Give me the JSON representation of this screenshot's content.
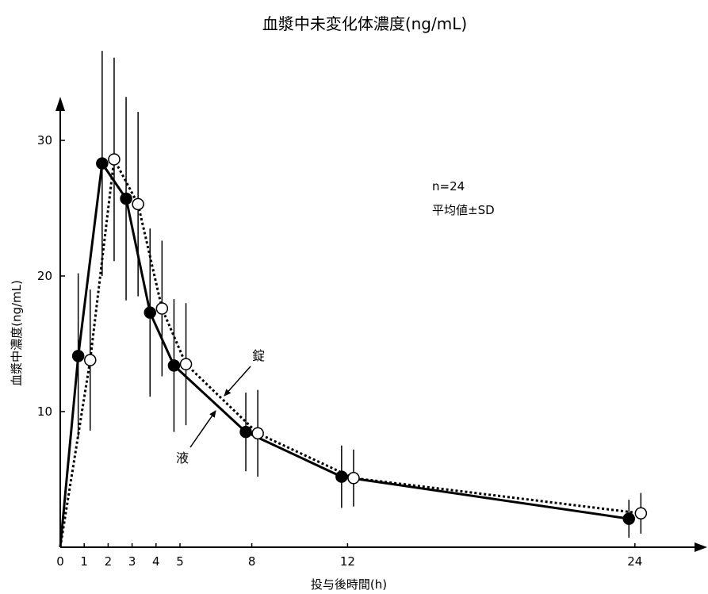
{
  "chart_data": {
    "type": "line",
    "title": "血漿中未変化体濃度(ng/mL)",
    "xlabel": "投与後時間(h)",
    "ylabel": "血漿中濃度(ng/mL)",
    "xlim": [
      0,
      27
    ],
    "ylim": [
      0,
      35
    ],
    "x_ticks": [
      0,
      1,
      2,
      3,
      4,
      5,
      8,
      12,
      24
    ],
    "y_ticks": [
      10,
      20,
      30
    ],
    "annotation_lines": [
      "n=24",
      "平均値±SD"
    ],
    "series": [
      {
        "name": "液",
        "marker": "filled-circle",
        "line_style": "solid",
        "x": [
          0,
          0.75,
          1.75,
          2.75,
          3.75,
          4.75,
          7.75,
          11.75,
          23.75
        ],
        "y": [
          0,
          14.1,
          28.3,
          25.7,
          17.3,
          13.4,
          8.5,
          5.2,
          2.1
        ],
        "sd": [
          0,
          6.1,
          8.3,
          7.5,
          6.2,
          4.9,
          2.9,
          2.3,
          1.4
        ]
      },
      {
        "name": "錠",
        "marker": "open-circle",
        "line_style": "dotted",
        "x": [
          0,
          1.25,
          2.25,
          3.25,
          4.25,
          5.25,
          8.25,
          12.25,
          24.25
        ],
        "y": [
          0,
          13.8,
          28.6,
          25.3,
          17.6,
          13.5,
          8.4,
          5.1,
          2.5
        ],
        "sd": [
          0,
          5.2,
          7.5,
          6.8,
          5.0,
          4.5,
          3.2,
          2.1,
          1.5
        ]
      }
    ],
    "series_labels": [
      "錠",
      "液"
    ]
  }
}
